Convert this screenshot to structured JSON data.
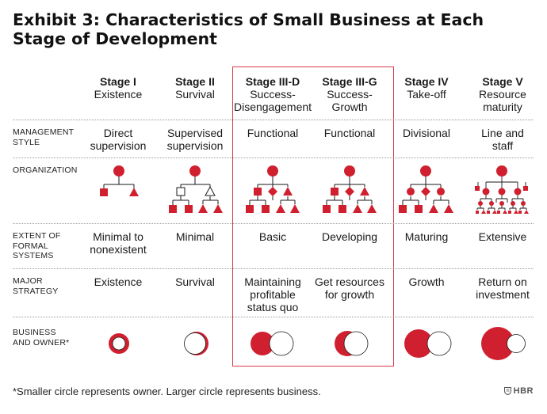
{
  "title": "Exhibit 3: Characteristics of Small Business at Each Stage of Development",
  "colors": {
    "red": "#d0202f",
    "highlight": "#d9394a",
    "outline": "#1a1a1a"
  },
  "stages": [
    {
      "name": "Stage I",
      "sub": "Existence"
    },
    {
      "name": "Stage II",
      "sub": "Survival"
    },
    {
      "name": "Stage III-D",
      "sub": "Success-\nDisengagement"
    },
    {
      "name": "Stage III-G",
      "sub": "Success-\nGrowth"
    },
    {
      "name": "Stage IV",
      "sub": "Take-off"
    },
    {
      "name": "Stage V",
      "sub": "Resource\nmaturity"
    }
  ],
  "rows": {
    "management_style": {
      "label": "MANAGEMENT\nSTYLE",
      "values": [
        "Direct\nsupervision",
        "Supervised\nsupervision",
        "Functional",
        "Functional",
        "Divisional",
        "Line and\nstaff"
      ]
    },
    "organization": {
      "label": "ORGANIZATION"
    },
    "formal_systems": {
      "label": "EXTENT OF\nFORMAL\nSYSTEMS",
      "values": [
        "Minimal to\nnonexistent",
        "Minimal",
        "Basic",
        "Developing",
        "Maturing",
        "Extensive"
      ]
    },
    "major_strategy": {
      "label": "MAJOR\nSTRATEGY",
      "values": [
        "Existence",
        "Survival",
        "Maintaining\nprofitable\nstatus quo",
        "Get resources\nfor growth",
        "Growth",
        "Return on\ninvestment"
      ]
    },
    "business_owner": {
      "label": "BUSINESS\nAND OWNER*"
    }
  },
  "footnote": "*Smaller circle represents owner. Larger circle represents business.",
  "brand": "HBR",
  "brand_icon": "shield-icon"
}
